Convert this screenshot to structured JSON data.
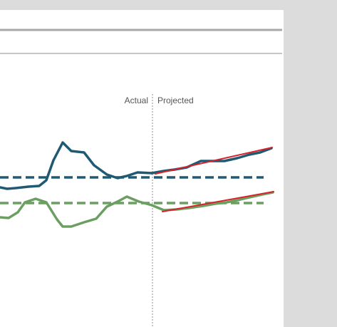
{
  "chart_data": {
    "type": "line",
    "labels": {
      "actual": "Actual",
      "projected": "Projected"
    },
    "series": [
      {
        "color": "#1f5a72",
        "points": [
          [
            0,
            263
          ],
          [
            10,
            265
          ],
          [
            22,
            264
          ],
          [
            40,
            262
          ],
          [
            55,
            261
          ],
          [
            65,
            253
          ],
          [
            75,
            225
          ],
          [
            88,
            200
          ],
          [
            100,
            212
          ],
          [
            118,
            214
          ],
          [
            132,
            232
          ],
          [
            150,
            245
          ],
          [
            165,
            250
          ],
          [
            178,
            247
          ],
          [
            193,
            242
          ],
          [
            213,
            243
          ]
        ]
      },
      {
        "color": "#1f5a72",
        "points": [
          [
            213,
            243
          ],
          [
            230,
            240
          ],
          [
            245,
            238
          ],
          [
            262,
            235
          ],
          [
            282,
            226
          ],
          [
            298,
            226
          ],
          [
            315,
            226
          ],
          [
            333,
            222
          ],
          [
            350,
            217
          ],
          [
            365,
            214
          ],
          [
            381,
            208
          ]
        ]
      },
      {
        "color": "#6a9f61",
        "points": [
          [
            0,
            305
          ],
          [
            12,
            306
          ],
          [
            25,
            298
          ],
          [
            35,
            284
          ],
          [
            50,
            279
          ],
          [
            65,
            284
          ],
          [
            80,
            308
          ],
          [
            88,
            318
          ],
          [
            100,
            318
          ],
          [
            118,
            312
          ],
          [
            135,
            307
          ],
          [
            150,
            290
          ],
          [
            165,
            283
          ],
          [
            178,
            276
          ],
          [
            195,
            283
          ],
          [
            213,
            288
          ]
        ]
      },
      {
        "color": "#6a9f61",
        "points": [
          [
            213,
            288
          ],
          [
            230,
            295
          ],
          [
            248,
            294
          ],
          [
            265,
            292
          ],
          [
            285,
            289
          ],
          [
            302,
            286
          ],
          [
            318,
            284
          ],
          [
            333,
            281
          ],
          [
            350,
            277
          ],
          [
            368,
            273
          ],
          [
            383,
            270
          ]
        ]
      },
      {
        "color": "#1f5a72",
        "dashed": true,
        "points": [
          [
            0,
            249
          ],
          [
            370,
            249
          ]
        ]
      },
      {
        "color": "#6a9f61",
        "dashed": true,
        "points": [
          [
            0,
            285
          ],
          [
            370,
            285
          ]
        ]
      },
      {
        "color": "#d9202a",
        "points": [
          [
            218,
            244
          ],
          [
            382,
            207
          ]
        ]
      },
      {
        "color": "#d9202a",
        "points": [
          [
            228,
            297
          ],
          [
            384,
            269
          ]
        ]
      }
    ],
    "grid": false,
    "colors": {
      "divider_line": "#8c8c8c",
      "rule_line": "#a8a8a8",
      "label_text": "#555555",
      "background": "#dcdcdc",
      "panel": "#ffffff"
    }
  }
}
